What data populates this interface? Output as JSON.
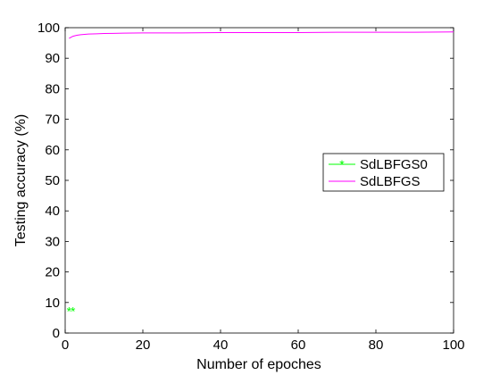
{
  "chart_data": {
    "type": "line",
    "title": "",
    "xlabel": "Number of epoches",
    "ylabel": "Testing accuracy (%)",
    "xlim": [
      0,
      100
    ],
    "ylim": [
      0,
      100
    ],
    "xticks": [
      0,
      20,
      40,
      60,
      80,
      100
    ],
    "yticks": [
      0,
      10,
      20,
      30,
      40,
      50,
      60,
      70,
      80,
      90,
      100
    ],
    "grid": false,
    "legend_position": "center-right",
    "series": [
      {
        "name": "SdLBFGS0",
        "color": "#00ff00",
        "style": "markers",
        "marker": "asterisk",
        "x": [
          1,
          2
        ],
        "y": [
          7.2,
          7.2
        ]
      },
      {
        "name": "SdLBFGS",
        "color": "#ff00ff",
        "style": "line",
        "x": [
          1,
          2,
          3,
          4,
          5,
          6,
          8,
          10,
          15,
          20,
          30,
          40,
          50,
          60,
          70,
          80,
          90,
          100
        ],
        "y": [
          96.5,
          97.2,
          97.5,
          97.7,
          97.8,
          97.9,
          98.0,
          98.1,
          98.2,
          98.3,
          98.3,
          98.4,
          98.4,
          98.4,
          98.5,
          98.5,
          98.5,
          98.6
        ]
      }
    ]
  }
}
